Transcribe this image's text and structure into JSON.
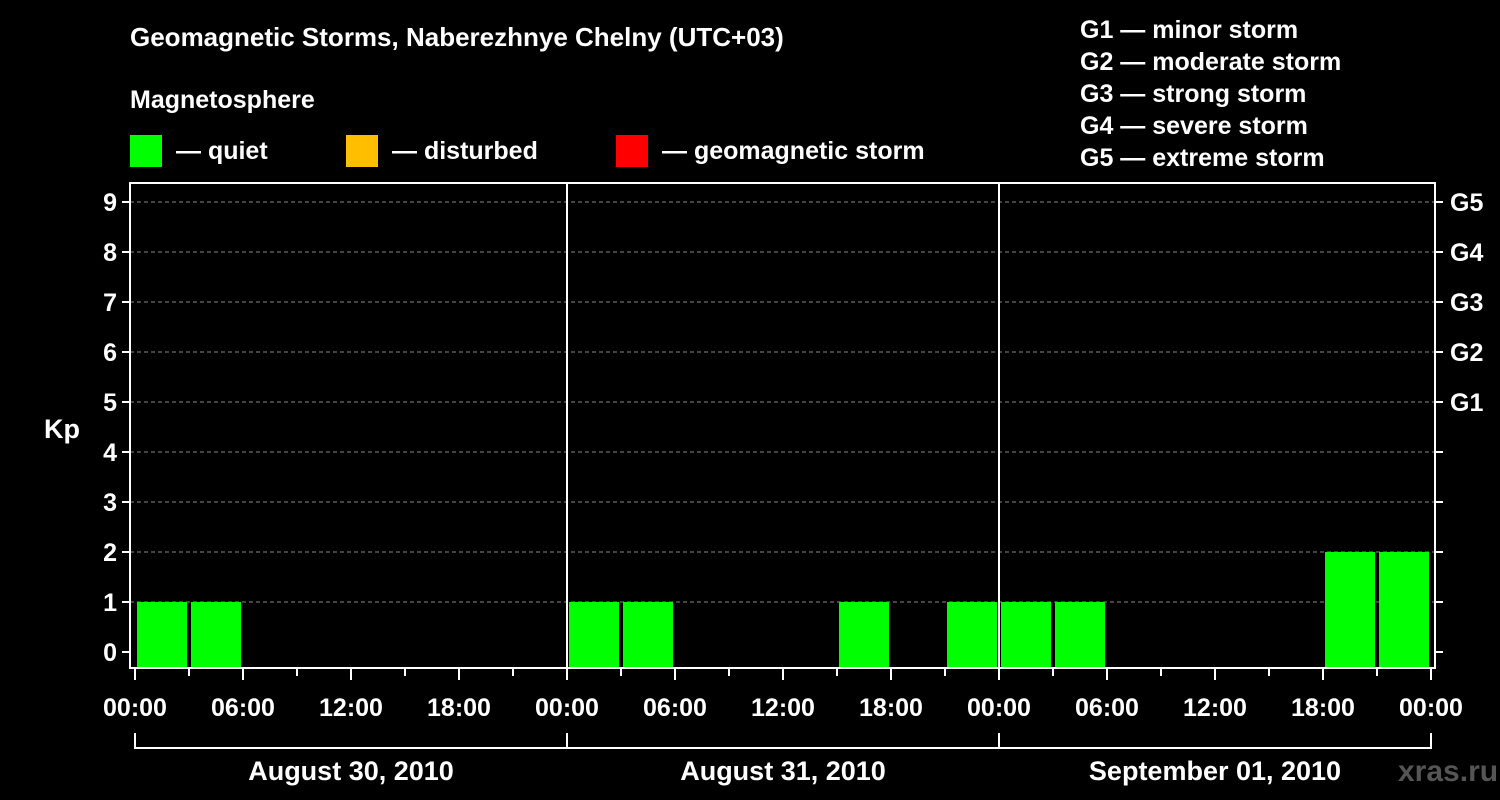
{
  "header": {
    "title": "Geomagnetic Storms, Naberezhnye Chelny (UTC+03)",
    "subtitle": "Magnetosphere"
  },
  "legend": [
    {
      "label": "— quiet",
      "color": "#00ff00"
    },
    {
      "label": "— disturbed",
      "color": "#ffbf00"
    },
    {
      "label": "— geomagnetic storm",
      "color": "#ff0000"
    }
  ],
  "storm_scale": [
    "G1 — minor storm",
    "G2 — moderate storm",
    "G3 — strong storm",
    "G4 — severe storm",
    "G5 — extreme storm"
  ],
  "watermark": "xras.ru",
  "chart_data": {
    "type": "bar",
    "title": "Geomagnetic Storms, Naberezhnye Chelny (UTC+03)",
    "ylabel": "Kp",
    "ylim": [
      0,
      9
    ],
    "y_ticks": [
      "0",
      "1",
      "2",
      "3",
      "4",
      "5",
      "6",
      "7",
      "8",
      "9"
    ],
    "right_ticks": [
      {
        "kp": 5,
        "label": "G1"
      },
      {
        "kp": 6,
        "label": "G2"
      },
      {
        "kp": 7,
        "label": "G3"
      },
      {
        "kp": 8,
        "label": "G4"
      },
      {
        "kp": 9,
        "label": "G5"
      }
    ],
    "x_tick_labels": [
      "00:00",
      "06:00",
      "12:00",
      "18:00",
      "00:00",
      "06:00",
      "12:00",
      "18:00",
      "00:00",
      "06:00",
      "12:00",
      "18:00",
      "00:00"
    ],
    "days": [
      "August 30, 2010",
      "August 31, 2010",
      "September 01, 2010"
    ],
    "interval_hours": 3,
    "series": [
      {
        "name": "Kp",
        "values": [
          1,
          1,
          0,
          0,
          0,
          0,
          0,
          0,
          1,
          1,
          0,
          0,
          0,
          1,
          0,
          1,
          1,
          1,
          0,
          0,
          0,
          0,
          2,
          2
        ]
      }
    ],
    "thresholds": {
      "quiet_max": 3,
      "disturbed_max": 4
    },
    "colors": {
      "quiet": "#00ff00",
      "disturbed": "#ffbf00",
      "storm": "#ff0000"
    },
    "grid": true
  }
}
